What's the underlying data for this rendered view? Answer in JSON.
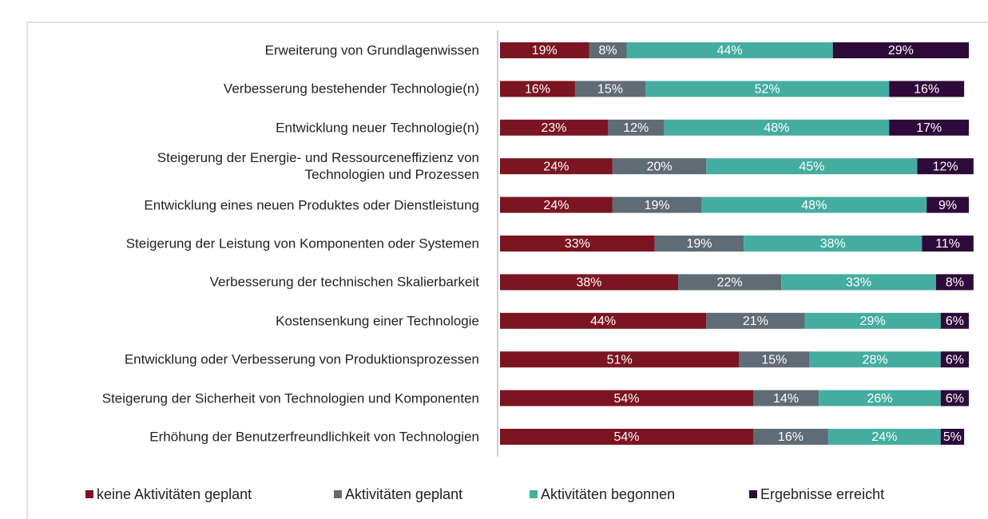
{
  "chart_data": {
    "type": "stacked_barh",
    "categories": [
      "Erweiterung von Grundlagenwissen",
      "Verbesserung bestehender Technologie(n)",
      "Entwicklung neuer Technologie(n)",
      "Steigerung der Energie- und Ressourceneffizienz von\nTechnologien und Prozessen",
      "Entwicklung eines neuen Produktes oder Dienstleistung",
      "Steigerung der Leistung von Komponenten oder Systemen",
      "Verbesserung der technischen Skalierbarkeit",
      "Kostensenkung einer Technologie",
      "Entwicklung oder Verbesserung von Produktionsprozessen",
      "Steigerung der Sicherheit von Technologien und Komponenten",
      "Erhöhung der Benutzerfreundlichkeit von Technologien"
    ],
    "series": [
      {
        "name": "keine Aktivitäten geplant",
        "color": "#7b1522",
        "values": [
          19,
          16,
          23,
          24,
          24,
          33,
          38,
          44,
          51,
          54,
          54
        ],
        "value_labels": [
          "19%",
          "16%",
          "23%",
          "24%",
          "24%",
          "33%",
          "38%",
          "44%",
          "51%",
          "54%",
          "54%"
        ]
      },
      {
        "name": "Aktivitäten geplant",
        "color": "#5f6b75",
        "values": [
          8,
          15,
          12,
          20,
          19,
          19,
          22,
          21,
          15,
          14,
          16
        ],
        "value_labels": [
          "8%",
          "15%",
          "12%",
          "20%",
          "19%",
          "19%",
          "22%",
          "21%",
          "15%",
          "14%",
          "16%"
        ]
      },
      {
        "name": "Aktivitäten begonnen",
        "color": "#45ada0",
        "values": [
          44,
          52,
          48,
          45,
          48,
          38,
          33,
          29,
          28,
          26,
          24
        ],
        "value_labels": [
          "44%",
          "52%",
          "48%",
          "45%",
          "48%",
          "38%",
          "33%",
          "29%",
          "28%",
          "26%",
          "24%"
        ]
      },
      {
        "name": "Ergebnisse erreicht",
        "color": "#2e0a3a",
        "values": [
          29,
          16,
          17,
          12,
          9,
          11,
          8,
          6,
          6,
          6,
          5
        ],
        "value_labels": [
          "29%",
          "16%",
          "17%",
          "12%",
          "9%",
          "11%",
          "8%",
          "6%",
          "6%",
          "6%",
          "5%"
        ]
      }
    ],
    "xlim": [
      0,
      100
    ],
    "legend": "bottom"
  }
}
